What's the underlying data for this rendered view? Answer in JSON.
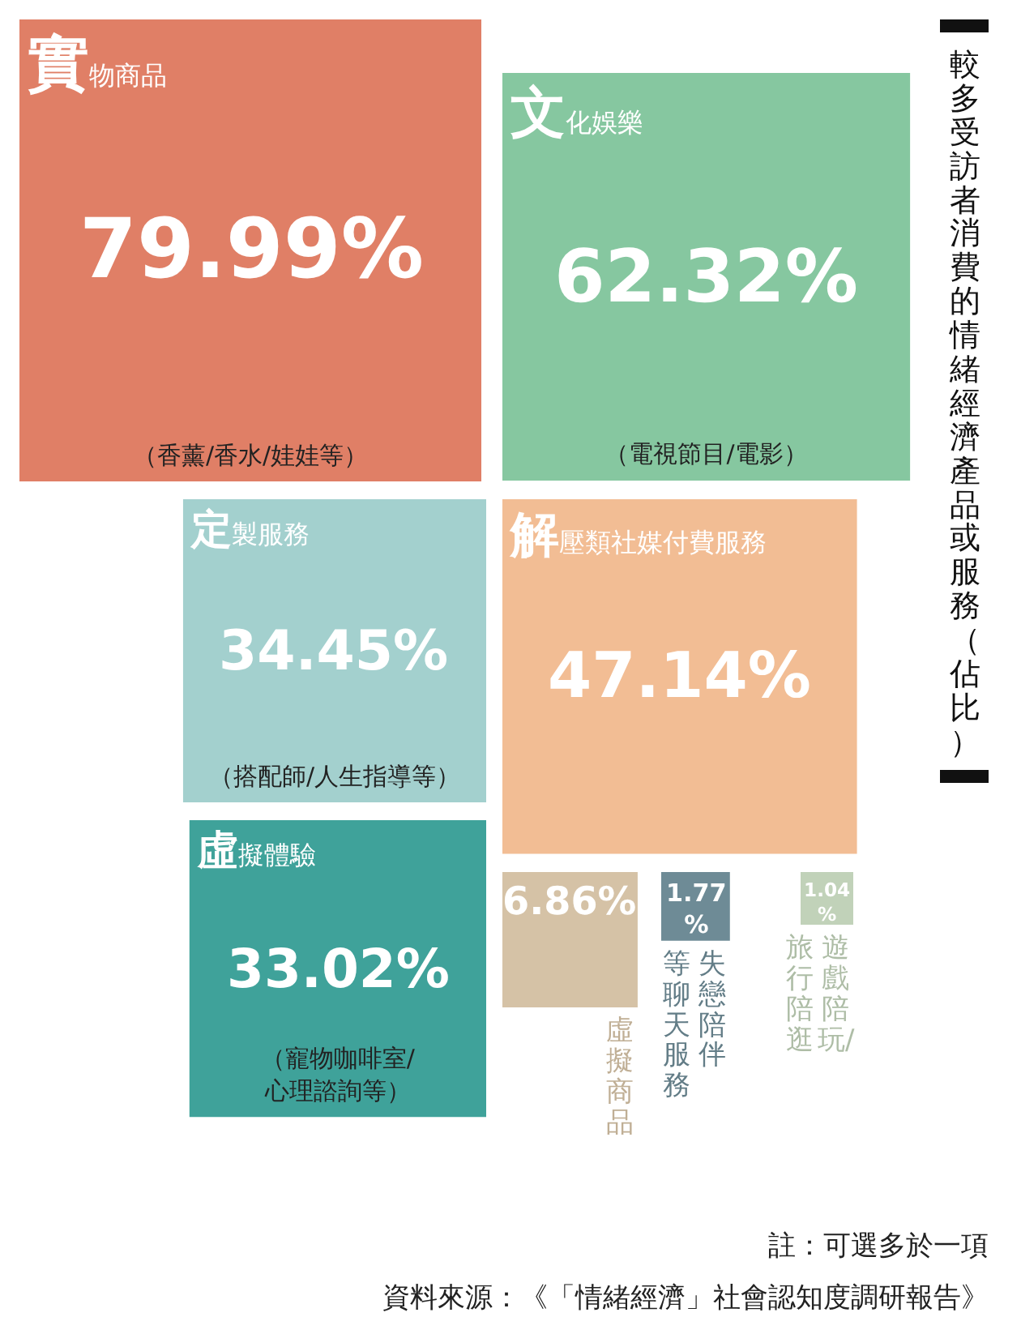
{
  "chart_data": {
    "type": "other",
    "title": "較多受訪者消費的情緒經濟產品或服務（佔比）",
    "categories": [
      "實物商品",
      "文化娛樂",
      "定製服務",
      "解壓類社媒付費服務",
      "虛擬體驗",
      "虛擬商品",
      "失戀陪伴等聊天服務",
      "遊戲陪玩/旅行陪逛"
    ],
    "values": [
      79.99,
      62.32,
      34.45,
      47.14,
      33.02,
      6.86,
      1.77,
      1.04
    ],
    "value_labels": [
      "79.99%",
      "62.32%",
      "34.45%",
      "47.14%",
      "33.02%",
      "6.86%",
      "1.77%",
      "1.04%"
    ],
    "colors": [
      "#e07f66",
      "#86c7a0",
      "#a3d0ce",
      "#f2bd94",
      "#3fa29a",
      "#d5c2a6",
      "#6e8b96",
      "#c1d2b9"
    ],
    "annotations": [
      "（香薰/香水/娃娃等）",
      "（電視節目/電影）",
      "（搭配師/人生指導等）",
      "（寵物咖啡室/心理諮詢等）",
      "註：可選多於一項",
      "資料來源：《「情緒經濟」社會認知度調研報告》"
    ]
  }
}
